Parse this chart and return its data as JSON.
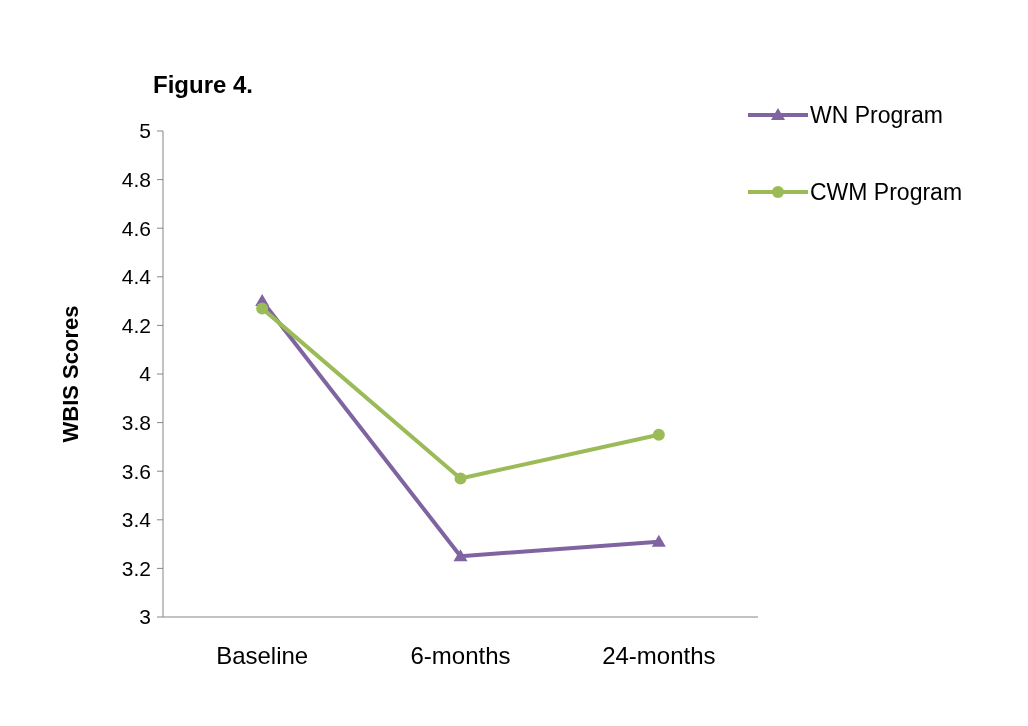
{
  "chart_data": {
    "type": "line",
    "title": "Figure 4.",
    "ylabel": "WBIS Scores",
    "categories": [
      "Baseline",
      "6-months",
      "24-months"
    ],
    "series": [
      {
        "name": "WN Program",
        "color": "#8064a2",
        "marker": "triangle",
        "values": [
          4.3,
          3.25,
          3.31
        ]
      },
      {
        "name": "CWM Program",
        "color": "#9bbb59",
        "marker": "circle",
        "values": [
          4.27,
          3.57,
          3.75
        ]
      }
    ],
    "ylim": [
      3,
      5
    ],
    "yticks": [
      3,
      3.2,
      3.4,
      3.6,
      3.8,
      4,
      4.2,
      4.4,
      4.6,
      4.8,
      5
    ],
    "grid": false,
    "legend": "top right"
  }
}
